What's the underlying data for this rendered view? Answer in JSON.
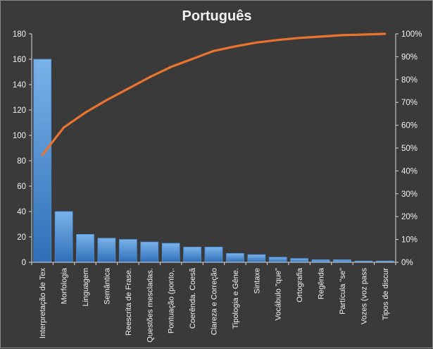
{
  "chart_data": {
    "type": "bar",
    "title": "Português",
    "xlabel": "",
    "ylabel": "",
    "ylim": [
      0,
      180
    ],
    "y_ticks": [
      0,
      20,
      40,
      60,
      80,
      100,
      120,
      140,
      160,
      180
    ],
    "y2lim": [
      0,
      100
    ],
    "y2_ticks": [
      "0%",
      "10%",
      "20%",
      "30%",
      "40%",
      "50%",
      "60%",
      "70%",
      "80%",
      "90%",
      "100%"
    ],
    "categories": [
      "Interpretação de Tex",
      "Morfologia",
      "Linguagem",
      "Semântica",
      "Reescrita de Frase.",
      "Questões mescladas.",
      "Pontuação (ponto,.",
      "Coerênda. Coesã",
      "Clareza e Correção",
      "Tipologia e Gêne.",
      "Sintaxe",
      "Vocábulo \"que\"",
      "Ortografia",
      "Regênda",
      "Partícula \"se\"",
      "Vozes (voz pass",
      "Tipos de discur"
    ],
    "series": [
      {
        "type": "bar",
        "values": [
          160,
          40,
          22,
          19,
          18,
          16,
          15,
          12,
          12,
          7,
          6,
          4,
          3,
          2,
          2,
          1,
          1
        ]
      },
      {
        "type": "line",
        "axis": "secondary",
        "values": [
          47,
          59,
          65.5,
          71,
          76,
          81,
          85.5,
          89,
          92.5,
          94.5,
          96.2,
          97.3,
          98.2,
          98.8,
          99.4,
          99.7,
          100
        ]
      }
    ],
    "grid": false,
    "legend": "none",
    "colors": {
      "background": "#3a3a3a",
      "bar": "#4a8fd8",
      "bar_light": "#7ab2ea",
      "bar_dark": "#2f6fb8",
      "line": "#e8742f",
      "axis": "#d9d9d9",
      "text": "#f2f2f2"
    }
  }
}
